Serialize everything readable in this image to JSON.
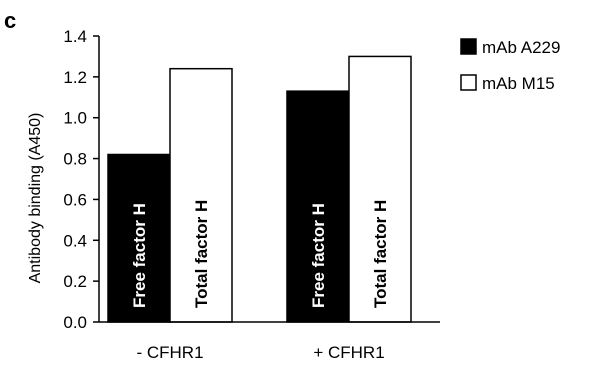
{
  "panel_label": "c",
  "colors": {
    "series_dark": "#000000",
    "series_light": "#ffffff",
    "axis": "#000000"
  },
  "chart_data": {
    "type": "bar",
    "title": "",
    "xlabel": "",
    "ylabel": "Antibody binding (A450)",
    "ylim": [
      0,
      1.4
    ],
    "yticks": [
      "0.0",
      "0.2",
      "0.4",
      "0.6",
      "0.8",
      "1.0",
      "1.2",
      "1.4"
    ],
    "grid": false,
    "legend_position": "top-right",
    "categories": [
      "- CFHR1",
      "+ CFHR1"
    ],
    "series": [
      {
        "name": "mAb A229",
        "values": [
          0.82,
          1.13
        ],
        "bar_labels": [
          "Free factor H",
          "Free factor H"
        ]
      },
      {
        "name": "mAb M15",
        "values": [
          1.24,
          1.3
        ],
        "bar_labels": [
          "Total factor H",
          "Total factor H"
        ]
      }
    ]
  }
}
